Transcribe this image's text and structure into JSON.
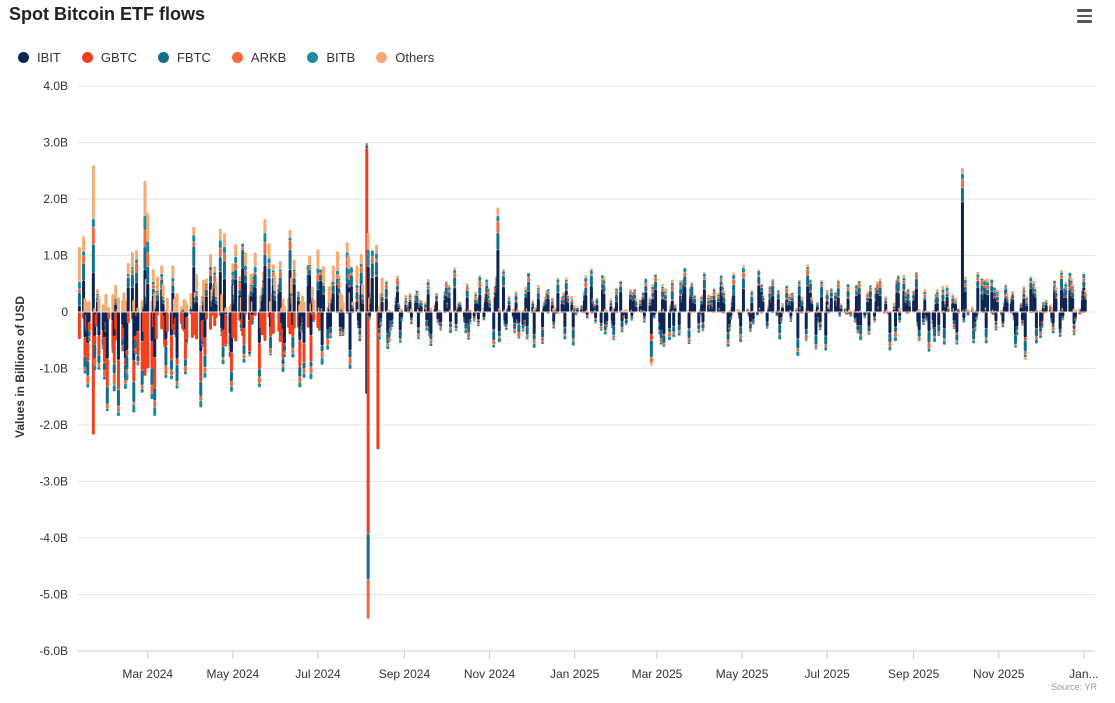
{
  "header": {
    "title": "Spot Bitcoin ETF flows",
    "menu_icon": "hamburger-menu-icon"
  },
  "source": "Source: YR",
  "chart_data": {
    "type": "bar",
    "stacked": true,
    "title": "Spot Bitcoin ETF flows",
    "xlabel": "",
    "ylabel": "Values in Billions of USD",
    "ylim": [
      -6.0,
      4.0
    ],
    "y_ticks": [
      4.0,
      3.0,
      2.0,
      1.0,
      0,
      -1.0,
      -2.0,
      -3.0,
      -4.0,
      -5.0,
      -6.0
    ],
    "y_tick_labels": [
      "4.0B",
      "3.0B",
      "2.0B",
      "1.0B",
      "0",
      "-1.0B",
      "-2.0B",
      "-3.0B",
      "-4.0B",
      "-5.0B",
      "-6.0B"
    ],
    "x_range": [
      "2024-01-11",
      "2026-01-09"
    ],
    "x_ticks": [
      "2024-03-01",
      "2024-05-01",
      "2024-07-01",
      "2024-09-01",
      "2024-11-01",
      "2025-01-01",
      "2025-03-01",
      "2025-05-01",
      "2025-07-01",
      "2025-09-01",
      "2025-11-01",
      "2026-01-01"
    ],
    "x_tick_labels": [
      "Mar 2024",
      "May 2024",
      "Jul 2024",
      "Sep 2024",
      "Nov 2024",
      "Jan 2025",
      "Mar 2025",
      "May 2025",
      "Jul 2025",
      "Sep 2025",
      "Nov 2025",
      "Jan..."
    ],
    "legend_position": "top-left",
    "grid": true,
    "series_names": [
      "IBIT",
      "GBTC",
      "FBTC",
      "ARKB",
      "BITB",
      "Others"
    ],
    "series_colors": [
      "#0d2554",
      "#f2401f",
      "#166e8c",
      "#f26b3a",
      "#1a8aa5",
      "#f7ab72"
    ],
    "notable_days": [
      {
        "date": "2024-01-12",
        "IBIT": 0.11,
        "GBTC": -0.48,
        "FBTC": 0.23,
        "ARKB": 0.07,
        "BITB": 0.12,
        "Others": 0.62
      },
      {
        "date": "2024-01-22",
        "IBIT": 0.7,
        "GBTC": -2.17,
        "FBTC": 0.5,
        "ARKB": 0.3,
        "BITB": 0.15,
        "Others": 0.95
      },
      {
        "date": "2024-02-28",
        "IBIT": 0.75,
        "GBTC": -1.13,
        "FBTC": 0.4,
        "ARKB": 0.3,
        "BITB": 0.25,
        "Others": 0.62
      },
      {
        "date": "2024-03-01",
        "IBIT": 0.5,
        "GBTC": -1.0,
        "FBTC": 0.3,
        "ARKB": 0.25,
        "BITB": 0.2,
        "Others": 0.5
      },
      {
        "date": "2024-08-05",
        "IBIT": -1.45,
        "GBTC": 2.9,
        "FBTC": 0.05,
        "ARKB": 0.03,
        "BITB": 0.01,
        "Others": 0.0
      },
      {
        "date": "2024-08-06",
        "IBIT": 0.8,
        "GBTC": -3.93,
        "FBTC": -0.8,
        "ARKB": -0.7,
        "BITB": 0.3,
        "Others": 0.3
      },
      {
        "date": "2024-08-13",
        "IBIT": 0.0,
        "GBTC": -2.43,
        "FBTC": 0.0,
        "ARKB": 0.0,
        "BITB": 0.0,
        "Others": 0.0
      },
      {
        "date": "2024-11-07",
        "IBIT": 1.1,
        "GBTC": 0.0,
        "FBTC": 0.3,
        "ARKB": 0.2,
        "BITB": 0.1,
        "Others": 0.15
      },
      {
        "date": "2025-02-25",
        "IBIT": -0.4,
        "GBTC": -0.1,
        "FBTC": -0.3,
        "ARKB": -0.1,
        "BITB": 0.0,
        "Others": -0.05
      },
      {
        "date": "2025-10-06",
        "IBIT": 1.95,
        "GBTC": 0.0,
        "FBTC": 0.25,
        "ARKB": 0.15,
        "BITB": 0.1,
        "Others": 0.1
      },
      {
        "date": "2025-11-20",
        "IBIT": -0.45,
        "GBTC": -0.05,
        "FBTC": -0.2,
        "ARKB": -0.05,
        "BITB": -0.05,
        "Others": -0.05
      }
    ]
  }
}
